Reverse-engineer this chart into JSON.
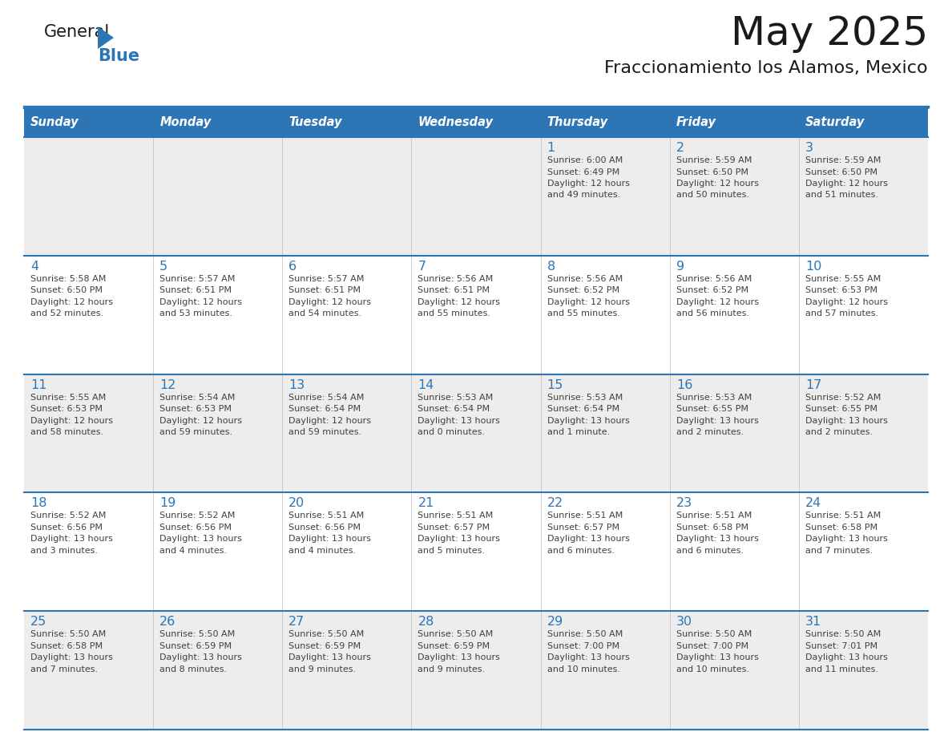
{
  "title": "May 2025",
  "subtitle": "Fraccionamiento los Alamos, Mexico",
  "days_of_week": [
    "Sunday",
    "Monday",
    "Tuesday",
    "Wednesday",
    "Thursday",
    "Friday",
    "Saturday"
  ],
  "header_bg": "#2E75B6",
  "header_text": "#FFFFFF",
  "row_bg_odd": "#EDEDED",
  "row_bg_even": "#FFFFFF",
  "border_color": "#2E75B6",
  "day_num_color": "#2E75B6",
  "text_color": "#404040",
  "title_color": "#1a1a1a",
  "subtitle_color": "#1a1a1a",
  "logo_general_color": "#1a1a1a",
  "logo_blue_color": "#2E75B6",
  "weeks": [
    [
      {
        "day": "",
        "sunrise": "",
        "sunset": "",
        "daylight": ""
      },
      {
        "day": "",
        "sunrise": "",
        "sunset": "",
        "daylight": ""
      },
      {
        "day": "",
        "sunrise": "",
        "sunset": "",
        "daylight": ""
      },
      {
        "day": "",
        "sunrise": "",
        "sunset": "",
        "daylight": ""
      },
      {
        "day": "1",
        "sunrise": "6:00 AM",
        "sunset": "6:49 PM",
        "daylight": "12 hours\nand 49 minutes."
      },
      {
        "day": "2",
        "sunrise": "5:59 AM",
        "sunset": "6:50 PM",
        "daylight": "12 hours\nand 50 minutes."
      },
      {
        "day": "3",
        "sunrise": "5:59 AM",
        "sunset": "6:50 PM",
        "daylight": "12 hours\nand 51 minutes."
      }
    ],
    [
      {
        "day": "4",
        "sunrise": "5:58 AM",
        "sunset": "6:50 PM",
        "daylight": "12 hours\nand 52 minutes."
      },
      {
        "day": "5",
        "sunrise": "5:57 AM",
        "sunset": "6:51 PM",
        "daylight": "12 hours\nand 53 minutes."
      },
      {
        "day": "6",
        "sunrise": "5:57 AM",
        "sunset": "6:51 PM",
        "daylight": "12 hours\nand 54 minutes."
      },
      {
        "day": "7",
        "sunrise": "5:56 AM",
        "sunset": "6:51 PM",
        "daylight": "12 hours\nand 55 minutes."
      },
      {
        "day": "8",
        "sunrise": "5:56 AM",
        "sunset": "6:52 PM",
        "daylight": "12 hours\nand 55 minutes."
      },
      {
        "day": "9",
        "sunrise": "5:56 AM",
        "sunset": "6:52 PM",
        "daylight": "12 hours\nand 56 minutes."
      },
      {
        "day": "10",
        "sunrise": "5:55 AM",
        "sunset": "6:53 PM",
        "daylight": "12 hours\nand 57 minutes."
      }
    ],
    [
      {
        "day": "11",
        "sunrise": "5:55 AM",
        "sunset": "6:53 PM",
        "daylight": "12 hours\nand 58 minutes."
      },
      {
        "day": "12",
        "sunrise": "5:54 AM",
        "sunset": "6:53 PM",
        "daylight": "12 hours\nand 59 minutes."
      },
      {
        "day": "13",
        "sunrise": "5:54 AM",
        "sunset": "6:54 PM",
        "daylight": "12 hours\nand 59 minutes."
      },
      {
        "day": "14",
        "sunrise": "5:53 AM",
        "sunset": "6:54 PM",
        "daylight": "13 hours\nand 0 minutes."
      },
      {
        "day": "15",
        "sunrise": "5:53 AM",
        "sunset": "6:54 PM",
        "daylight": "13 hours\nand 1 minute."
      },
      {
        "day": "16",
        "sunrise": "5:53 AM",
        "sunset": "6:55 PM",
        "daylight": "13 hours\nand 2 minutes."
      },
      {
        "day": "17",
        "sunrise": "5:52 AM",
        "sunset": "6:55 PM",
        "daylight": "13 hours\nand 2 minutes."
      }
    ],
    [
      {
        "day": "18",
        "sunrise": "5:52 AM",
        "sunset": "6:56 PM",
        "daylight": "13 hours\nand 3 minutes."
      },
      {
        "day": "19",
        "sunrise": "5:52 AM",
        "sunset": "6:56 PM",
        "daylight": "13 hours\nand 4 minutes."
      },
      {
        "day": "20",
        "sunrise": "5:51 AM",
        "sunset": "6:56 PM",
        "daylight": "13 hours\nand 4 minutes."
      },
      {
        "day": "21",
        "sunrise": "5:51 AM",
        "sunset": "6:57 PM",
        "daylight": "13 hours\nand 5 minutes."
      },
      {
        "day": "22",
        "sunrise": "5:51 AM",
        "sunset": "6:57 PM",
        "daylight": "13 hours\nand 6 minutes."
      },
      {
        "day": "23",
        "sunrise": "5:51 AM",
        "sunset": "6:58 PM",
        "daylight": "13 hours\nand 6 minutes."
      },
      {
        "day": "24",
        "sunrise": "5:51 AM",
        "sunset": "6:58 PM",
        "daylight": "13 hours\nand 7 minutes."
      }
    ],
    [
      {
        "day": "25",
        "sunrise": "5:50 AM",
        "sunset": "6:58 PM",
        "daylight": "13 hours\nand 7 minutes."
      },
      {
        "day": "26",
        "sunrise": "5:50 AM",
        "sunset": "6:59 PM",
        "daylight": "13 hours\nand 8 minutes."
      },
      {
        "day": "27",
        "sunrise": "5:50 AM",
        "sunset": "6:59 PM",
        "daylight": "13 hours\nand 9 minutes."
      },
      {
        "day": "28",
        "sunrise": "5:50 AM",
        "sunset": "6:59 PM",
        "daylight": "13 hours\nand 9 minutes."
      },
      {
        "day": "29",
        "sunrise": "5:50 AM",
        "sunset": "7:00 PM",
        "daylight": "13 hours\nand 10 minutes."
      },
      {
        "day": "30",
        "sunrise": "5:50 AM",
        "sunset": "7:00 PM",
        "daylight": "13 hours\nand 10 minutes."
      },
      {
        "day": "31",
        "sunrise": "5:50 AM",
        "sunset": "7:01 PM",
        "daylight": "13 hours\nand 11 minutes."
      }
    ]
  ]
}
